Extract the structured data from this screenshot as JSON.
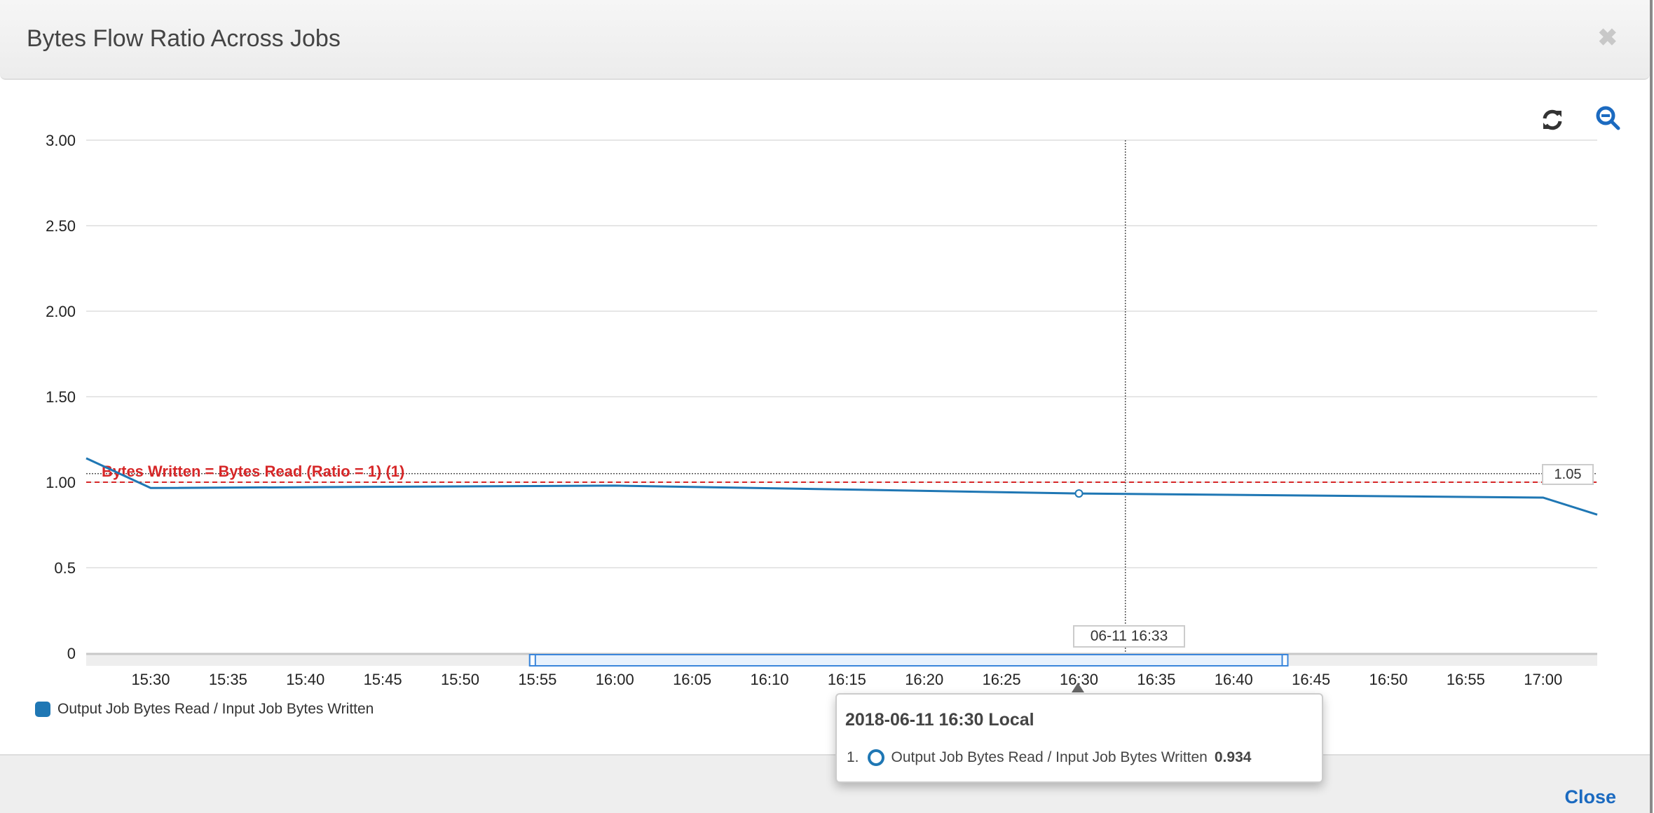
{
  "dialog": {
    "title": "Bytes Flow Ratio Across Jobs",
    "close_icon": "close-x-icon",
    "close_label": "Close"
  },
  "toolbar": {
    "refresh_icon": "refresh-icon",
    "zoom_out_icon": "zoom-out-icon"
  },
  "colors": {
    "series": "#1f77b4",
    "threshold": "#d62728",
    "accent": "#1b6ac0"
  },
  "chart_data": {
    "type": "line",
    "title": "",
    "xlabel": "",
    "ylabel": "",
    "xlim": [
      "15:25:50",
      "17:03:30"
    ],
    "ylim": [
      0,
      3
    ],
    "grid": true,
    "y_ticks": [
      "0",
      "0.5",
      "1.00",
      "1.50",
      "2.00",
      "2.50",
      "3.00"
    ],
    "y_tick_values": [
      0,
      0.5,
      1.0,
      1.5,
      2.0,
      2.5,
      3.0
    ],
    "x_ticks": [
      "15:30",
      "15:35",
      "15:40",
      "15:45",
      "15:50",
      "15:55",
      "16:00",
      "16:05",
      "16:10",
      "16:15",
      "16:20",
      "16:25",
      "16:30",
      "16:35",
      "16:40",
      "16:45",
      "16:50",
      "16:55",
      "17:00"
    ],
    "series": [
      {
        "name": "Output Job Bytes Read / Input Job Bytes Written",
        "x": [
          "15:25:50",
          "15:30:00",
          "16:00:00",
          "16:30:00",
          "17:00:00",
          "17:03:30"
        ],
        "y": [
          1.14,
          0.966,
          0.98,
          0.934,
          0.91,
          0.81
        ]
      }
    ],
    "threshold": {
      "label": "Bytes Written = Bytes Read (Ratio = 1) (1)",
      "value": 1.0
    },
    "crosshair": {
      "x": "16:33:00",
      "y": 1.05,
      "x_label": "06-11 16:33",
      "y_label": "1.05"
    },
    "highlight_point": {
      "x": "16:30:00",
      "y": 0.934
    },
    "navigator": {
      "range": [
        "15:54:30",
        "16:43:30"
      ]
    },
    "legend": {
      "placement": "bottom-left"
    }
  },
  "tooltip": {
    "title": "2018-06-11 16:30 Local",
    "index": "1.",
    "series_name": "Output Job Bytes Read / Input Job Bytes Written",
    "value": "0.934"
  }
}
